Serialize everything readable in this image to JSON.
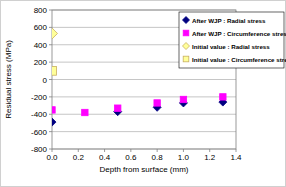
{
  "chart_data": {
    "type": "scatter",
    "x_label": "Depth from surface (mm)",
    "y_label": "Residual stress (MPa)",
    "xlim": [
      0,
      1.4
    ],
    "ylim": [
      -800,
      800
    ],
    "xticks": [
      {
        "value": 0,
        "label": "0.0"
      },
      {
        "value": 0.2,
        "label": "0.2"
      },
      {
        "value": 0.4,
        "label": "0.4"
      },
      {
        "value": 0.6,
        "label": "0.6"
      },
      {
        "value": 0.8,
        "label": "0.8"
      },
      {
        "value": 1.0,
        "label": "1.0"
      },
      {
        "value": 1.2,
        "label": "1.2"
      },
      {
        "value": 1.4,
        "label": "1.4"
      }
    ],
    "yticks": [
      -800,
      -600,
      -400,
      -200,
      0,
      200,
      400,
      600,
      800
    ],
    "grid": true,
    "legend": "upper right",
    "series": [
      {
        "name": "After WJP : Radial stress",
        "color": "#000080",
        "marker": "diamond",
        "x": [
          0,
          0.5,
          0.8,
          1.0,
          1.3
        ],
        "values": [
          -490,
          -370,
          -320,
          -270,
          -260
        ]
      },
      {
        "name": "After WJP : Circumference stress",
        "color": "#ff00ff",
        "marker": "square",
        "x": [
          0,
          0.25,
          0.5,
          0.8,
          1.0,
          1.3
        ],
        "values": [
          -350,
          -380,
          -330,
          -270,
          -230,
          -200
        ]
      },
      {
        "name": "Initial value : Radial stress",
        "color": "#ffff99",
        "marker": "diamond",
        "x": [
          0
        ],
        "values": [
          530
        ]
      },
      {
        "name": "Initial value : Circumference stress",
        "color": "#ffff99",
        "marker": "square",
        "x": [
          0
        ],
        "values": [
          100
        ]
      }
    ]
  }
}
